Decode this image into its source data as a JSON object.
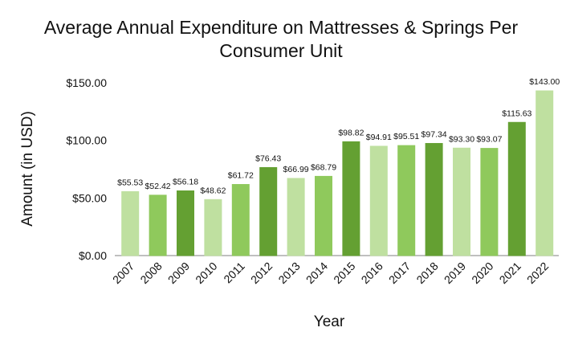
{
  "chart_data": {
    "type": "bar",
    "title": "Average Annual Expenditure on Mattresses & Springs Per Consumer Unit",
    "xlabel": "Year",
    "ylabel": "Amount (in USD)",
    "ylim": [
      0,
      150
    ],
    "yticks": [
      "$0.00",
      "$50.00",
      "$100.00",
      "$150.00"
    ],
    "ytick_values": [
      0,
      50,
      100,
      150
    ],
    "grid": false,
    "legend": "none",
    "categories": [
      "2007",
      "2008",
      "2009",
      "2010",
      "2011",
      "2012",
      "2013",
      "2014",
      "2015",
      "2016",
      "2017",
      "2018",
      "2019",
      "2020",
      "2021",
      "2022"
    ],
    "values": [
      55.53,
      52.42,
      56.18,
      48.62,
      61.72,
      76.43,
      66.99,
      68.79,
      98.82,
      94.91,
      95.51,
      97.34,
      93.3,
      93.07,
      115.63,
      143.0
    ],
    "data_labels": [
      "$55.53",
      "$52.42",
      "$56.18",
      "$48.62",
      "$61.72",
      "$76.43",
      "$66.99",
      "$68.79",
      "$98.82",
      "$94.91",
      "$95.51",
      "$97.34",
      "$93.30",
      "$93.07",
      "$115.63",
      "$143.00"
    ],
    "colors": [
      "#bfe0a0",
      "#8fc95c",
      "#64a032"
    ]
  }
}
